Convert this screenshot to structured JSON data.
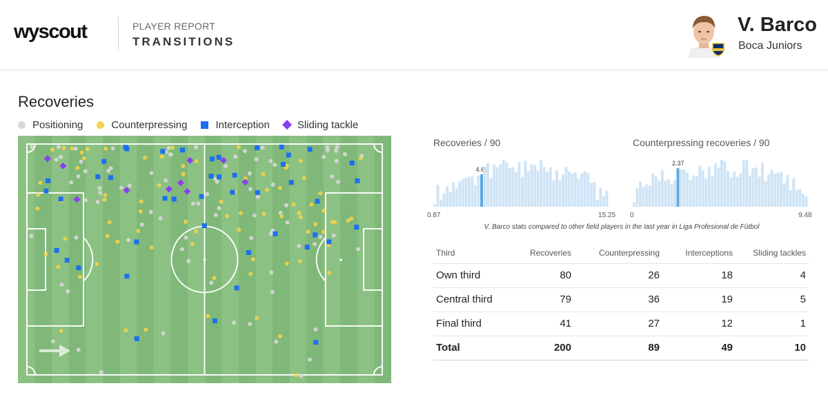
{
  "header": {
    "logo": "wyscout",
    "report_label": "PLAYER REPORT",
    "report_title": "TRANSITIONS",
    "player_name": "V. Barco",
    "team": "Boca Juniors"
  },
  "section": {
    "title": "Recoveries",
    "legend": [
      {
        "label": "Positioning",
        "color": "#d8d8d8",
        "shape": "dot"
      },
      {
        "label": "Counterpressing",
        "color": "#f2d34b",
        "shape": "dot"
      },
      {
        "label": "Interception",
        "color": "#1d6ff0",
        "shape": "square"
      },
      {
        "label": "Sliding tackle",
        "color": "#8a3ff0",
        "shape": "diamond"
      }
    ]
  },
  "colors": {
    "pitch_light": "#8cc184",
    "pitch_dark": "#7fb878",
    "histogram_bar": "#cfe4f5",
    "histogram_highlight": "#5aa9e3"
  },
  "charts": {
    "recoveries": {
      "title": "Recoveries / 90",
      "min": "0.87",
      "max": "15.25",
      "player_value": "4.62",
      "value": 4.62,
      "range": [
        0.87,
        15.25
      ]
    },
    "counterpressing": {
      "title": "Counterpressing recoveries / 90",
      "min": "0",
      "max": "9.48",
      "player_value": "2.37",
      "value": 2.37,
      "range": [
        0,
        9.48
      ]
    },
    "caption": "V. Barco stats compared to other field players in the last year in Liga Profesional de Fútbol"
  },
  "table": {
    "headers": [
      "Third",
      "Recoveries",
      "Counterpressing",
      "Interceptions",
      "Sliding tackles"
    ],
    "rows": [
      [
        "Own third",
        "80",
        "26",
        "18",
        "4"
      ],
      [
        "Central third",
        "79",
        "36",
        "19",
        "5"
      ],
      [
        "Final third",
        "41",
        "27",
        "12",
        "1"
      ]
    ],
    "total": [
      "Total",
      "200",
      "89",
      "49",
      "10"
    ]
  }
}
